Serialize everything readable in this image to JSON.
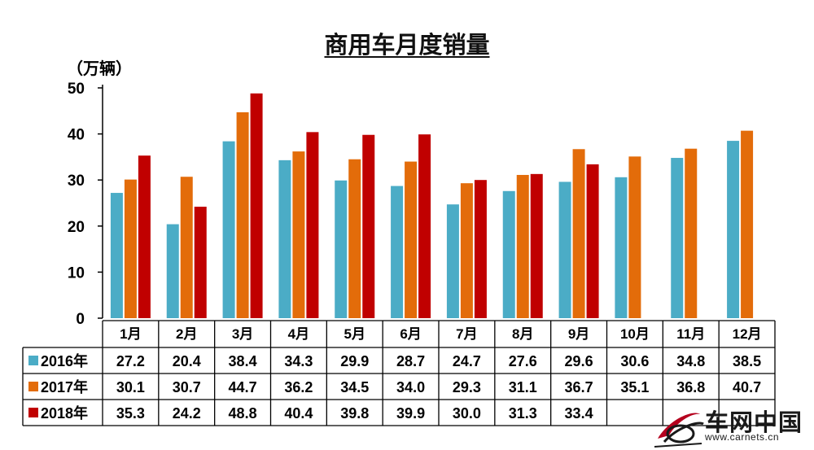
{
  "chart_data": {
    "type": "bar",
    "title": "商用车月度销量",
    "unit_label": "（万辆）",
    "ylim": [
      0,
      50
    ],
    "yticks": [
      0,
      10,
      20,
      30,
      40,
      50
    ],
    "categories": [
      "1月",
      "2月",
      "3月",
      "4月",
      "5月",
      "6月",
      "7月",
      "8月",
      "9月",
      "10月",
      "11月",
      "12月"
    ],
    "series": [
      {
        "name": "2016年",
        "color": "#4bacc6",
        "values": [
          27.2,
          20.4,
          38.4,
          34.3,
          29.9,
          28.7,
          24.7,
          27.6,
          29.6,
          30.6,
          34.8,
          38.5
        ]
      },
      {
        "name": "2017年",
        "color": "#e36c0a",
        "values": [
          30.1,
          30.7,
          44.7,
          36.2,
          34.5,
          34.0,
          29.3,
          31.1,
          36.7,
          35.1,
          36.8,
          40.7
        ]
      },
      {
        "name": "2018年",
        "color": "#c00000",
        "values": [
          35.3,
          24.2,
          48.8,
          40.4,
          39.8,
          39.9,
          30.0,
          31.3,
          33.4,
          null,
          null,
          null
        ]
      }
    ],
    "legend": "data-table",
    "grid": false
  },
  "watermark": {
    "text": "车网中国",
    "url": "www.carnets.cn",
    "logo_icon": "car-logo-icon"
  }
}
